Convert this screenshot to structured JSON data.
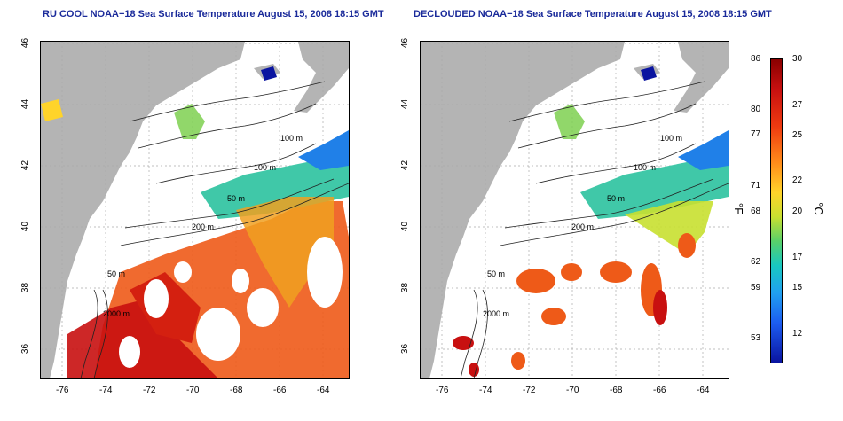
{
  "panels": [
    {
      "id": "left",
      "title": "RU COOL NOAA−18 Sea Surface Temperature August 15, 2008 18:15 GMT"
    },
    {
      "id": "right",
      "title": "DECLOUDED NOAA−18 Sea Surface Temperature August 15, 2008 18:15 GMT"
    }
  ],
  "axes": {
    "x_ticks": [
      "-76",
      "-74",
      "-72",
      "-70",
      "-68",
      "-66",
      "-64"
    ],
    "y_ticks": [
      "46",
      "44",
      "42",
      "40",
      "38",
      "36"
    ]
  },
  "contours": [
    "100 m",
    "100 m",
    "50 m",
    "200 m",
    "50 m",
    "2000 m"
  ],
  "colorbar": {
    "fahrenheit_ticks": [
      "86",
      "80",
      "77",
      "71",
      "68",
      "62",
      "59",
      "53"
    ],
    "celsius_ticks": [
      "30",
      "27",
      "25",
      "22",
      "20",
      "17",
      "15",
      "12"
    ],
    "fahrenheit_unit": "°F",
    "celsius_unit": "°C",
    "range_c": [
      10,
      30
    ],
    "colors": {
      "land": "#b4b4b4",
      "hot": "#c81010",
      "warm": "#ff8c1a",
      "mid": "#c8e030",
      "cool": "#18c8c0",
      "cold": "#1c5cf0",
      "coldest": "#0a14a0"
    }
  }
}
